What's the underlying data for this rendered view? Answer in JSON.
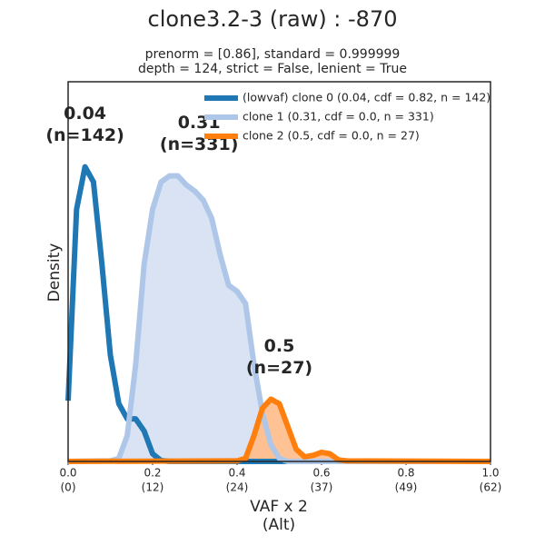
{
  "chart_data": {
    "type": "line",
    "title": "clone3.2-3 (raw) : -870",
    "subtitle": [
      "prenorm = [0.86], standard = 0.999999",
      "depth = 124, strict = False, lenient = True"
    ],
    "x_label": [
      "VAF x 2",
      "(Alt)"
    ],
    "y_label": "Density",
    "xlim": [
      0,
      1
    ],
    "ylim": [
      0,
      12.5
    ],
    "xticks": [
      {
        "value": 0,
        "label": "0.0",
        "alt_label": "(0)"
      },
      {
        "value": 0.2,
        "label": "0.2",
        "alt_label": "(12)"
      },
      {
        "value": 0.4,
        "label": "0.4",
        "alt_label": "(24)"
      },
      {
        "value": 0.6,
        "label": "0.6",
        "alt_label": "(37)"
      },
      {
        "value": 0.8,
        "label": "0.8",
        "alt_label": "(49)"
      },
      {
        "value": 1,
        "label": "1.0",
        "alt_label": "(62)"
      }
    ],
    "legend": "upper right",
    "series": [
      {
        "name": "(lowvaf) clone 0 (0.04, cdf = 0.82, n = 142)",
        "color": "#1f77b4",
        "fill": null,
        "peak": {
          "value": 0.04,
          "label": "0.04"
        },
        "count_label": "(n=142)",
        "x": [
          0,
          0.02,
          0.04,
          0.06,
          0.08,
          0.1,
          0.12,
          0.14,
          0.16,
          0.18,
          0.2,
          0.22,
          0.24,
          1
        ],
        "values": [
          2.0,
          8.3,
          9.7,
          9.2,
          6.5,
          3.5,
          1.9,
          1.4,
          1.4,
          1.0,
          0.25,
          0.03,
          0,
          0
        ]
      },
      {
        "name": "clone 1 (0.31, cdf = 0.0, n = 331)",
        "color": "#aec7e8",
        "fill": "#d5e0f3",
        "peak": {
          "value": 0.31,
          "label": "0.31"
        },
        "count_label": "(n=331)",
        "x": [
          0,
          0.1,
          0.12,
          0.14,
          0.16,
          0.18,
          0.2,
          0.22,
          0.24,
          0.26,
          0.28,
          0.3,
          0.32,
          0.34,
          0.36,
          0.38,
          0.4,
          0.42,
          0.44,
          0.46,
          0.48,
          0.5,
          0.52,
          1
        ],
        "values": [
          0,
          0.02,
          0.1,
          0.85,
          3.2,
          6.5,
          8.3,
          9.2,
          9.4,
          9.4,
          9.1,
          8.9,
          8.6,
          8.0,
          6.8,
          5.8,
          5.6,
          5.2,
          3.2,
          1.6,
          0.55,
          0.1,
          0,
          0
        ]
      },
      {
        "name": "clone 2 (0.5, cdf = 0.0, n = 27)",
        "color": "#ff7f0e",
        "fill": "#ffbb88",
        "peak": {
          "value": 0.5,
          "label": "0.5"
        },
        "count_label": "(n=27)",
        "x": [
          0,
          0.4,
          0.42,
          0.44,
          0.46,
          0.48,
          0.5,
          0.52,
          0.54,
          0.56,
          0.58,
          0.6,
          0.62,
          0.64,
          0.66,
          1
        ],
        "values": [
          0,
          0.02,
          0.1,
          0.85,
          1.75,
          2.05,
          1.9,
          1.15,
          0.4,
          0.15,
          0.2,
          0.3,
          0.25,
          0.05,
          0.02,
          0
        ]
      }
    ]
  }
}
